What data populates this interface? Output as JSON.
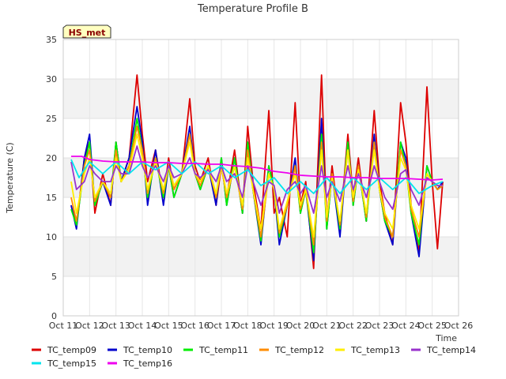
{
  "chart_data": {
    "type": "line",
    "title": "Temperature Profile B",
    "xlabel": "Time",
    "ylabel": "Temperature (C)",
    "tag": "HS_met",
    "xlim": [
      11,
      26
    ],
    "ylim": [
      0,
      35
    ],
    "y_ticks": [
      0,
      5,
      10,
      15,
      20,
      25,
      30,
      35
    ],
    "x_ticks": [
      {
        "value": 11,
        "label": "Oct 11"
      },
      {
        "value": 12,
        "label": "Oct 12"
      },
      {
        "value": 13,
        "label": "Oct 13"
      },
      {
        "value": 14,
        "label": "Oct 14"
      },
      {
        "value": 15,
        "label": "Oct 15"
      },
      {
        "value": 16,
        "label": "Oct 16"
      },
      {
        "value": 17,
        "label": "Oct 17"
      },
      {
        "value": 18,
        "label": "Oct 18"
      },
      {
        "value": 19,
        "label": "Oct 19"
      },
      {
        "value": 20,
        "label": "Oct 20"
      },
      {
        "value": 21,
        "label": "Oct 21"
      },
      {
        "value": 22,
        "label": "Oct 22"
      },
      {
        "value": 23,
        "label": "Oct 23"
      },
      {
        "value": 24,
        "label": "Oct 24"
      },
      {
        "value": 25,
        "label": "Oct 25"
      },
      {
        "value": 26,
        "label": "Oct 26"
      }
    ],
    "grid": true,
    "legend_position": "bottom",
    "series": [
      {
        "name": "TC_temp09",
        "color": "#dd0000",
        "x": [
          11.3,
          11.5,
          11.8,
          12.0,
          12.2,
          12.5,
          12.8,
          13.0,
          13.2,
          13.5,
          13.8,
          14.0,
          14.2,
          14.5,
          14.8,
          15.0,
          15.2,
          15.5,
          15.8,
          16.0,
          16.2,
          16.5,
          16.8,
          17.0,
          17.2,
          17.5,
          17.8,
          18.0,
          18.2,
          18.5,
          18.8,
          19.0,
          19.2,
          19.5,
          19.8,
          20.0,
          20.2,
          20.5,
          20.8,
          21.0,
          21.2,
          21.5,
          21.8,
          22.0,
          22.2,
          22.5,
          22.8,
          23.0,
          23.2,
          23.5,
          23.8,
          24.0,
          24.2,
          24.5,
          24.8,
          25.0,
          25.2,
          25.4
        ],
        "values": [
          14,
          11.5,
          20,
          22,
          13,
          18,
          14,
          22,
          17,
          20,
          30.5,
          23,
          17,
          21,
          15,
          20,
          16,
          18,
          27.5,
          19,
          17,
          20,
          14,
          19,
          15,
          21,
          13,
          24,
          17,
          11,
          26,
          13,
          15,
          10,
          27,
          14,
          17,
          6,
          30.5,
          12,
          19,
          11,
          23,
          15,
          20,
          12,
          26,
          17,
          13,
          9,
          27,
          22,
          14,
          8,
          29,
          17,
          8.5,
          17
        ]
      },
      {
        "name": "TC_temp10",
        "color": "#0000cc",
        "x": [
          11.3,
          11.5,
          11.8,
          12.0,
          12.2,
          12.5,
          12.8,
          13.0,
          13.2,
          13.5,
          13.8,
          14.0,
          14.2,
          14.5,
          14.8,
          15.0,
          15.2,
          15.5,
          15.8,
          16.0,
          16.2,
          16.5,
          16.8,
          17.0,
          17.2,
          17.5,
          17.8,
          18.0,
          18.2,
          18.5,
          18.8,
          19.0,
          19.2,
          19.5,
          19.8,
          20.0,
          20.2,
          20.5,
          20.8,
          21.0,
          21.2,
          21.5,
          21.8,
          22.0,
          22.2,
          22.5,
          22.8,
          23.0,
          23.2,
          23.5,
          23.8,
          24.0,
          24.2,
          24.5,
          24.8,
          25.0,
          25.2,
          25.4
        ],
        "values": [
          14,
          11,
          20,
          23,
          14,
          17,
          14,
          22,
          17,
          20,
          26.5,
          22,
          14,
          21,
          14,
          19,
          15,
          18,
          24,
          18,
          16,
          19,
          14,
          20,
          14,
          20,
          13,
          22,
          16,
          9,
          19,
          16,
          9,
          14,
          20,
          13,
          16,
          7,
          25,
          11,
          18,
          10,
          22,
          14,
          19,
          12,
          23,
          16,
          12,
          9,
          22,
          20,
          13,
          7.5,
          19,
          17,
          16,
          17
        ]
      },
      {
        "name": "TC_temp11",
        "color": "#00ee00",
        "x": [
          11.3,
          11.5,
          11.8,
          12.0,
          12.2,
          12.5,
          12.8,
          13.0,
          13.2,
          13.5,
          13.8,
          14.0,
          14.2,
          14.5,
          14.8,
          15.0,
          15.2,
          15.5,
          15.8,
          16.0,
          16.2,
          16.5,
          16.8,
          17.0,
          17.2,
          17.5,
          17.8,
          18.0,
          18.2,
          18.5,
          18.8,
          19.0,
          19.2,
          19.5,
          19.8,
          20.0,
          20.2,
          20.5,
          20.8,
          21.0,
          21.2,
          21.5,
          21.8,
          22.0,
          22.2,
          22.5,
          22.8,
          23.0,
          23.2,
          23.5,
          23.8,
          24.0,
          24.2,
          24.5,
          24.8,
          25.0,
          25.2,
          25.4
        ],
        "values": [
          13.5,
          11.5,
          19,
          22,
          14,
          17,
          15,
          22,
          17,
          19,
          25,
          21,
          15,
          20,
          15,
          19,
          15,
          18,
          23,
          18,
          16,
          19,
          15,
          20,
          14,
          20,
          13,
          22,
          16,
          9.5,
          19,
          16,
          10,
          14,
          19,
          13,
          16,
          8,
          23,
          11,
          18,
          11,
          22,
          14,
          19,
          12,
          22,
          16,
          12,
          10,
          22,
          19,
          13,
          9,
          19,
          17,
          16,
          16.5
        ]
      },
      {
        "name": "TC_temp12",
        "color": "#ff8c00",
        "x": [
          11.3,
          11.5,
          11.8,
          12.0,
          12.2,
          12.5,
          12.8,
          13.0,
          13.2,
          13.5,
          13.8,
          14.0,
          14.2,
          14.5,
          14.8,
          15.0,
          15.2,
          15.5,
          15.8,
          16.0,
          16.2,
          16.5,
          16.8,
          17.0,
          17.2,
          17.5,
          17.8,
          18.0,
          18.2,
          18.5,
          18.8,
          19.0,
          19.2,
          19.5,
          19.8,
          20.0,
          20.2,
          20.5,
          20.8,
          21.0,
          21.2,
          21.5,
          21.8,
          22.0,
          22.2,
          22.5,
          22.8,
          23.0,
          23.2,
          23.5,
          23.8,
          24.0,
          24.2,
          24.5,
          24.8,
          25.0,
          25.2,
          25.4
        ],
        "values": [
          15,
          12,
          19,
          21,
          14.5,
          17,
          15,
          21,
          17,
          19,
          24,
          21,
          15.5,
          20,
          15.5,
          19,
          16,
          18,
          23,
          18,
          16.5,
          19,
          15,
          19,
          15,
          19,
          13.5,
          21,
          16,
          10,
          18,
          16,
          10.5,
          14,
          19,
          13.5,
          16,
          9,
          22,
          12,
          18,
          11.5,
          21,
          14.5,
          19,
          12.5,
          22,
          16,
          12.5,
          10,
          21,
          19,
          13.5,
          10,
          18,
          17,
          16,
          16.5
        ]
      },
      {
        "name": "TC_temp13",
        "color": "#ffee00",
        "x": [
          11.3,
          11.5,
          11.8,
          12.0,
          12.2,
          12.5,
          12.8,
          13.0,
          13.2,
          13.5,
          13.8,
          14.0,
          14.2,
          14.5,
          14.8,
          15.0,
          15.2,
          15.5,
          15.8,
          16.0,
          16.2,
          16.5,
          16.8,
          17.0,
          17.2,
          17.5,
          17.8,
          18.0,
          18.2,
          18.5,
          18.8,
          19.0,
          19.2,
          19.5,
          19.8,
          20.0,
          20.2,
          20.5,
          20.8,
          21.0,
          21.2,
          21.5,
          21.8,
          22.0,
          22.2,
          22.5,
          22.8,
          23.0,
          23.2,
          23.5,
          23.8,
          24.0,
          24.2,
          24.5,
          24.8,
          25.0,
          25.2,
          25.4
        ],
        "values": [
          17,
          13,
          18,
          20,
          15,
          17,
          15.5,
          20,
          17,
          18.5,
          23,
          20,
          16,
          19.5,
          16,
          19,
          16.5,
          18,
          22,
          18,
          17,
          19,
          15.5,
          19,
          15.5,
          19,
          14,
          20,
          16,
          11,
          18,
          16,
          11,
          14.5,
          18,
          14,
          16,
          10,
          21,
          12.5,
          17.5,
          12,
          21,
          15,
          18.5,
          13,
          21,
          16,
          13,
          11,
          20,
          18.5,
          14,
          11,
          18,
          17,
          16.5,
          16.5
        ]
      },
      {
        "name": "TC_temp14",
        "color": "#9932cc",
        "x": [
          11.3,
          11.5,
          11.8,
          12.0,
          12.2,
          12.5,
          12.8,
          13.0,
          13.2,
          13.5,
          13.8,
          14.0,
          14.2,
          14.5,
          14.8,
          15.0,
          15.2,
          15.5,
          15.8,
          16.0,
          16.2,
          16.5,
          16.8,
          17.0,
          17.2,
          17.5,
          17.8,
          18.0,
          18.2,
          18.5,
          18.8,
          19.0,
          19.2,
          19.5,
          19.8,
          20.0,
          20.2,
          20.5,
          20.8,
          21.0,
          21.2,
          21.5,
          21.8,
          22.0,
          22.2,
          22.5,
          22.8,
          23.0,
          23.2,
          23.5,
          23.8,
          24.0,
          24.2,
          24.5,
          24.8,
          25.0,
          25.2,
          25.4
        ],
        "values": [
          19.5,
          16,
          17,
          19,
          18,
          17,
          17,
          19,
          18,
          18,
          21.5,
          19,
          17.5,
          19,
          17,
          19,
          17.5,
          18,
          20,
          18,
          17.5,
          18.5,
          17,
          19,
          17,
          18,
          15,
          19,
          17,
          14,
          17,
          16.5,
          13,
          16,
          17,
          15.5,
          16.5,
          13,
          19,
          15,
          17,
          14.5,
          19,
          16,
          18,
          15,
          19,
          17,
          15,
          13.5,
          18,
          18.5,
          16,
          14,
          17.5,
          17,
          16.5,
          16.5
        ]
      },
      {
        "name": "TC_temp15",
        "color": "#00e5ee",
        "x": [
          11.3,
          11.6,
          12.0,
          12.5,
          13.0,
          13.5,
          14.0,
          14.5,
          15.0,
          15.5,
          16.0,
          16.5,
          17.0,
          17.5,
          18.0,
          18.5,
          19.0,
          19.5,
          20.0,
          20.5,
          21.0,
          21.5,
          22.0,
          22.5,
          23.0,
          23.5,
          24.0,
          24.5,
          25.0,
          25.4
        ],
        "values": [
          19.8,
          17.5,
          19.5,
          18,
          19.5,
          18,
          19.5,
          18.5,
          19.5,
          18,
          19.5,
          18,
          19,
          17.5,
          18.5,
          16.5,
          17.5,
          15.5,
          17,
          15.5,
          17.5,
          15.5,
          17.5,
          16,
          17.5,
          16,
          17.5,
          15.5,
          16.5,
          17
        ]
      },
      {
        "name": "TC_temp16",
        "color": "#ee00ee",
        "x": [
          11.3,
          11.7,
          12.0,
          12.5,
          13.0,
          13.5,
          14.0,
          14.5,
          15.0,
          15.5,
          16.0,
          16.5,
          17.0,
          17.5,
          18.0,
          18.5,
          19.0,
          19.5,
          20.0,
          20.5,
          21.0,
          21.5,
          22.0,
          22.5,
          23.0,
          23.5,
          24.0,
          24.5,
          25.0,
          25.4
        ],
        "values": [
          20.2,
          20.2,
          19.8,
          19.6,
          19.5,
          19.5,
          19.5,
          19.4,
          19.4,
          19.3,
          19.3,
          19.2,
          19.2,
          19.0,
          18.9,
          18.7,
          18.3,
          18.1,
          17.8,
          17.7,
          17.6,
          17.6,
          17.5,
          17.5,
          17.4,
          17.4,
          17.4,
          17.3,
          17.2,
          17.3
        ]
      }
    ]
  }
}
